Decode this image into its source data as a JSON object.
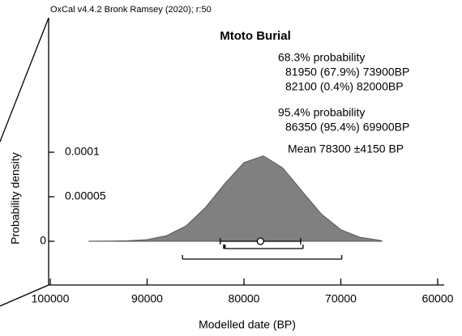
{
  "chart_data": {
    "type": "area",
    "header": "OxCal v4.4.2 Bronk Ramsey (2020); r:50",
    "title": "Mtoto Burial",
    "xlabel": "Modelled date (BP)",
    "ylabel": "Probability density",
    "x": [
      96000,
      94000,
      92000,
      90000,
      88000,
      86000,
      84000,
      82000,
      80000,
      78000,
      76000,
      74000,
      72000,
      70000,
      68000,
      66000,
      65700
    ],
    "series": [
      {
        "name": "Mtoto Burial",
        "color": "#808080",
        "values": [
          1e-07,
          2e-07,
          6e-07,
          1.8e-06,
          6.3e-06,
          1.71e-05,
          3.76e-05,
          6.45e-05,
          8.84e-05,
          9.59e-05,
          8.24e-05,
          5.62e-05,
          3.04e-05,
          1.3e-05,
          4.4e-06,
          1.2e-06,
          0
        ]
      }
    ],
    "xlim": [
      100000,
      60000
    ],
    "xticks": [
      100000,
      90000,
      80000,
      70000,
      60000
    ],
    "ylim": [
      0,
      0.00015
    ],
    "yticks": [
      0,
      5e-05,
      0.0001
    ],
    "sigma1": {
      "label": "68.3% probability",
      "ranges": [
        {
          "from": 81950,
          "to": 73900,
          "label": "81950 (67.9%) 73900BP"
        },
        {
          "from": 82100,
          "to": 82000,
          "label": "82100 (0.4%) 82000BP"
        }
      ]
    },
    "sigma2": {
      "label": "95.4% probability",
      "ranges": [
        {
          "from": 86350,
          "to": 69900,
          "label": "86350 (95.4%) 69900BP"
        }
      ]
    },
    "mean": {
      "mean": 78300,
      "sd": 4150,
      "label": "Mean 78300 ±4150 BP"
    }
  }
}
